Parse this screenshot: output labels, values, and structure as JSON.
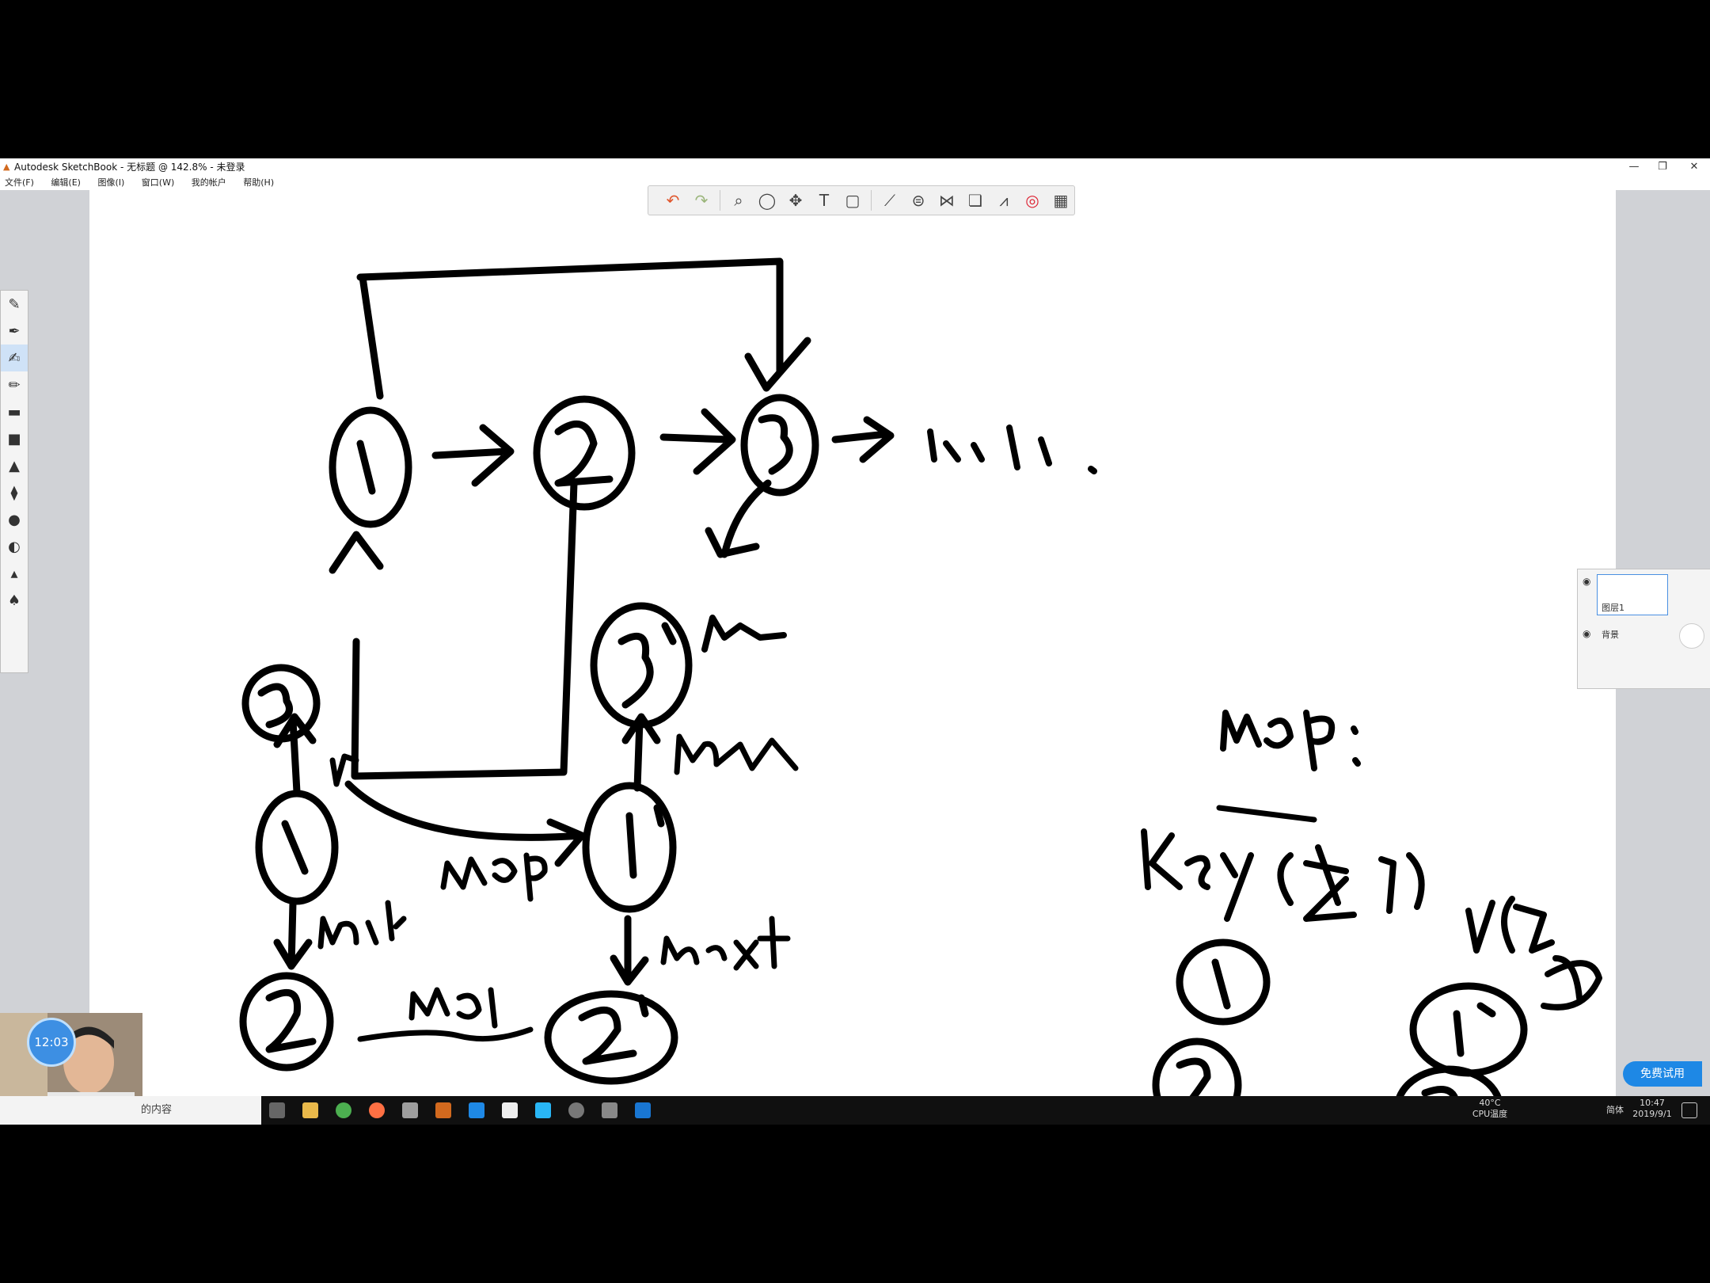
{
  "window": {
    "title": "Autodesk SketchBook - 无标题 @ 142.8% - 未登录",
    "controls": [
      "—",
      "❐",
      "✕"
    ]
  },
  "menu": [
    "文件(F)",
    "编辑(E)",
    "图像(I)",
    "窗口(W)",
    "我的帐户",
    "帮助(H)"
  ],
  "toolbar": {
    "icons": [
      "undo-icon",
      "redo-icon",
      "zoom-icon",
      "lasso-icon",
      "move-icon",
      "text-icon",
      "crop-icon",
      "ruler-icon",
      "ellipse-guide-icon",
      "symmetry-icon",
      "copy-paste-icon",
      "brush-library-icon",
      "color-wheel-icon",
      "palette-icon"
    ]
  },
  "tool_panel": {
    "icons": [
      "brush-1",
      "brush-2",
      "brush-3",
      "pen",
      "eraser",
      "fill",
      "marker",
      "airbrush",
      "smudge",
      "blur",
      "pencil",
      "chisel"
    ]
  },
  "layers": {
    "items": [
      {
        "name": "图层1",
        "visible": true
      },
      {
        "name": "背景",
        "visible": true
      }
    ]
  },
  "trial_button": "免费试用",
  "webcam": {
    "timer": "12:03"
  },
  "taskbar": {
    "search_placeholder": "的内容",
    "temperature": "40°C",
    "temperature_label": "CPU温度",
    "ime": "简体",
    "time": "10:47",
    "date": "2019/9/1"
  },
  "drawing": {
    "labels": [
      "null.",
      "map",
      "map:",
      "Key(老)",
      "V(新)",
      "next",
      "rand",
      "r"
    ],
    "nodes": [
      "1",
      "2",
      "3",
      "1'",
      "2'",
      "3'"
    ]
  }
}
